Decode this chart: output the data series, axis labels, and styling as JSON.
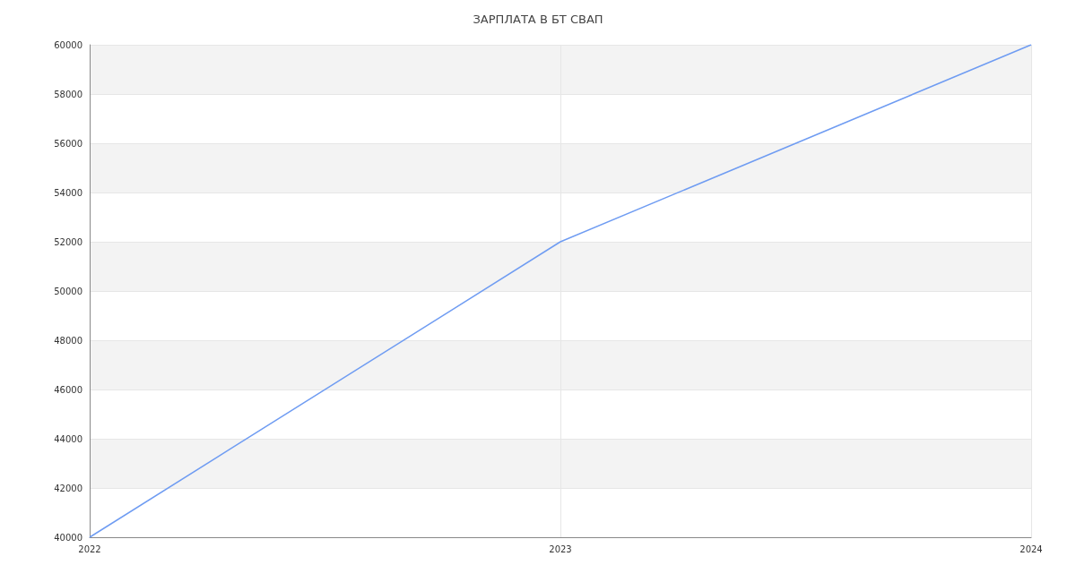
{
  "chart_data": {
    "type": "line",
    "title": "ЗАРПЛАТА В БТ СВАП",
    "categories": [
      "2022",
      "2023",
      "2024"
    ],
    "series": [
      {
        "color": "#6f9cf2",
        "values": [
          40000,
          52000,
          60000
        ]
      }
    ],
    "ylim": [
      40000,
      60000
    ],
    "yticks": [
      40000,
      42000,
      44000,
      46000,
      48000,
      50000,
      52000,
      54000,
      56000,
      58000,
      60000
    ],
    "grid": true,
    "marker": "none",
    "line_style": "solid"
  }
}
